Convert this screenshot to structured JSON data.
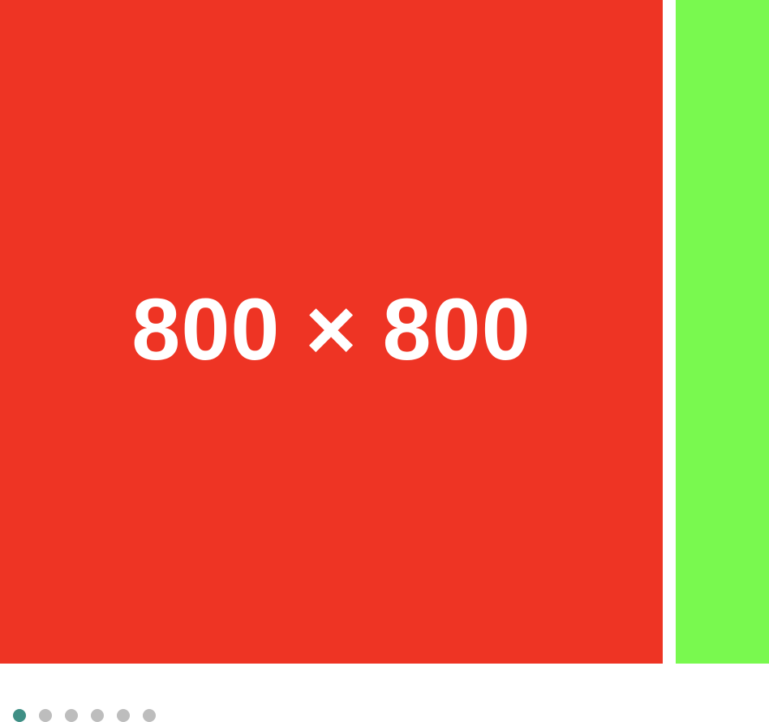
{
  "carousel": {
    "slides": [
      {
        "label": "800 × 800",
        "color": "#ee3424"
      },
      {
        "label": "",
        "color": "#79f94f"
      }
    ],
    "active_index": 0,
    "page_count": 6,
    "colors": {
      "dot_active": "#3f8f85",
      "dot_inactive": "#bdbdbd",
      "background": "#ffffff"
    }
  }
}
